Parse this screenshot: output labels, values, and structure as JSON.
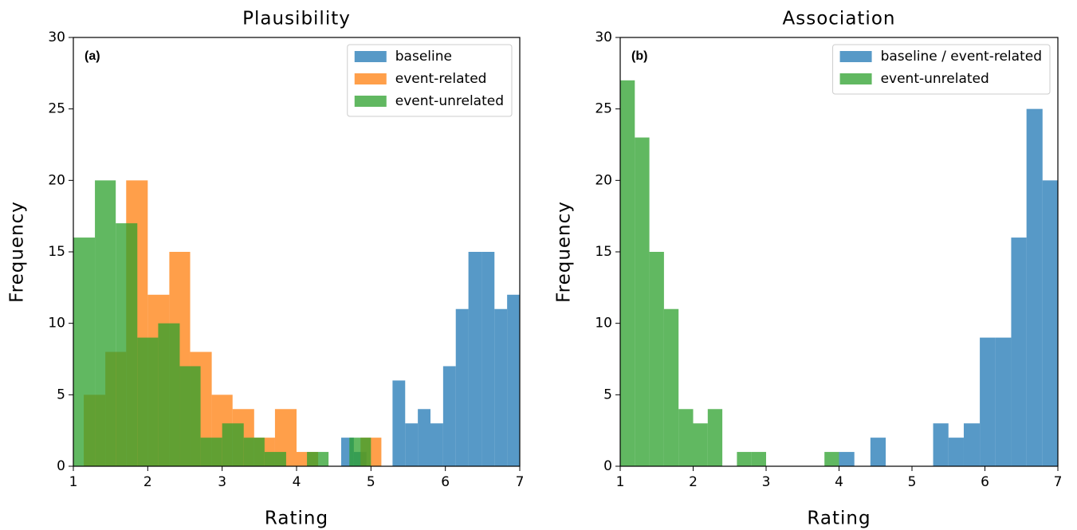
{
  "chart_data": [
    {
      "type": "histogram",
      "title": "Plausibility",
      "annotation": "(a)",
      "xlabel": "Rating",
      "ylabel": "Frequency",
      "xlim": [
        1,
        7
      ],
      "xticks": [
        1,
        2,
        3,
        4,
        5,
        6,
        7
      ],
      "ylim": [
        0,
        30
      ],
      "yticks": [
        0,
        5,
        10,
        15,
        20,
        25,
        30
      ],
      "legend": "upper right",
      "alpha": 0.75,
      "series": [
        {
          "name": "baseline",
          "color": "#1f77b4",
          "bins": [
            4.6,
            4.77,
            4.94,
            5.11,
            5.29,
            5.46,
            5.63,
            5.8,
            5.97,
            6.14,
            6.31,
            6.49,
            6.66,
            6.83,
            7.0
          ],
          "values": [
            2,
            1,
            0,
            0,
            6,
            3,
            4,
            3,
            7,
            11,
            15,
            15,
            11,
            12
          ]
        },
        {
          "name": "event-related",
          "color": "#ff7f0e",
          "bins": [
            1.14,
            1.43,
            1.71,
            2.0,
            2.29,
            2.57,
            2.86,
            3.14,
            3.43,
            3.71,
            4.0,
            4.29,
            4.57,
            4.86,
            5.14
          ],
          "values": [
            5,
            8,
            20,
            12,
            15,
            8,
            5,
            4,
            2,
            4,
            1,
            0,
            0,
            2
          ]
        },
        {
          "name": "event-unrelated",
          "color": "#2ca02c",
          "bins": [
            1.0,
            1.29,
            1.57,
            1.86,
            2.14,
            2.43,
            2.71,
            3.0,
            3.29,
            3.57,
            3.86,
            4.14,
            4.43,
            4.71,
            5.0
          ],
          "values": [
            16,
            20,
            17,
            9,
            10,
            7,
            2,
            3,
            2,
            1,
            0,
            1,
            0,
            2
          ]
        }
      ]
    },
    {
      "type": "histogram",
      "title": "Association",
      "annotation": "(b)",
      "xlabel": "Rating",
      "ylabel": "Frequency",
      "xlim": [
        1,
        7
      ],
      "xticks": [
        1,
        2,
        3,
        4,
        5,
        6,
        7
      ],
      "ylim": [
        0,
        30
      ],
      "yticks": [
        0,
        5,
        10,
        15,
        20,
        25,
        30
      ],
      "legend": "upper right",
      "alpha": 0.75,
      "series": [
        {
          "name": "baseline / event-related",
          "color": "#1f77b4",
          "bins": [
            4.0,
            4.21,
            4.43,
            4.64,
            4.86,
            5.07,
            5.29,
            5.5,
            5.71,
            5.93,
            6.14,
            6.36,
            6.57,
            6.79,
            7.0
          ],
          "values": [
            1,
            0,
            2,
            0,
            0,
            0,
            3,
            2,
            3,
            9,
            9,
            16,
            25,
            20
          ]
        },
        {
          "name": "event-unrelated",
          "color": "#2ca02c",
          "bins": [
            1.0,
            1.2,
            1.4,
            1.6,
            1.8,
            2.0,
            2.2,
            2.4,
            2.6,
            2.8,
            3.0,
            3.2,
            3.4,
            3.6,
            3.8,
            4.0
          ],
          "values": [
            27,
            23,
            15,
            11,
            4,
            3,
            4,
            0,
            1,
            1,
            0,
            0,
            0,
            0,
            1
          ]
        }
      ]
    }
  ]
}
